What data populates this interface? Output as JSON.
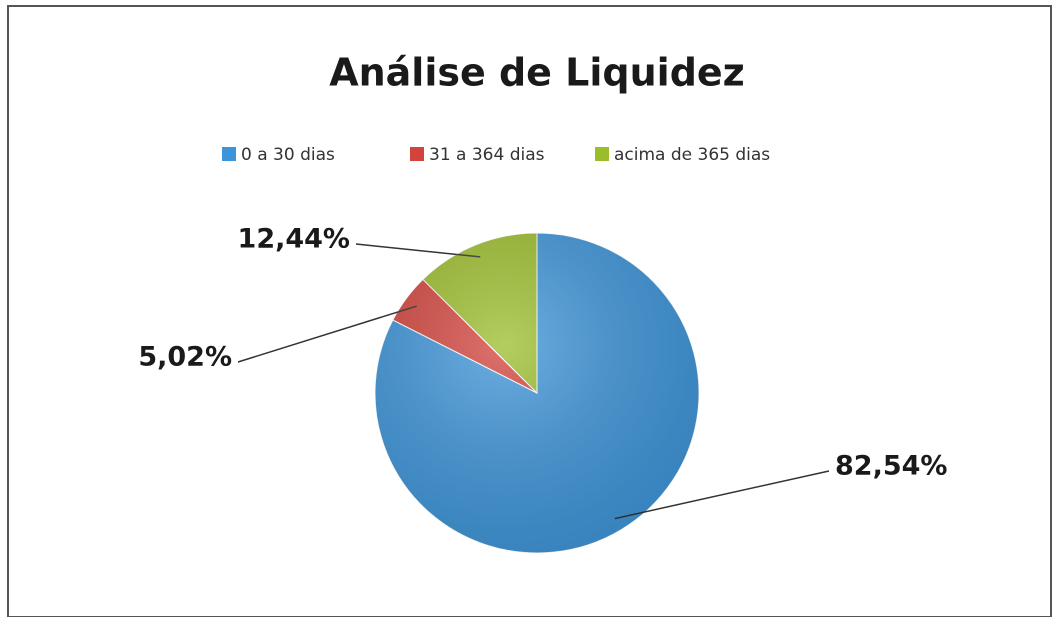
{
  "chart_data": {
    "type": "pie",
    "title": "Análise de Liquidez",
    "categories": [
      "0 a 30 dias",
      "31 a 364 dias",
      "acima de 365 dias"
    ],
    "values": [
      82.54,
      5.02,
      12.44
    ],
    "value_labels": [
      "82,54%",
      "5,02%",
      "12,44%"
    ],
    "colors": [
      "#3d94d8",
      "#d2433c",
      "#9bbd2c"
    ],
    "legend": "top"
  }
}
